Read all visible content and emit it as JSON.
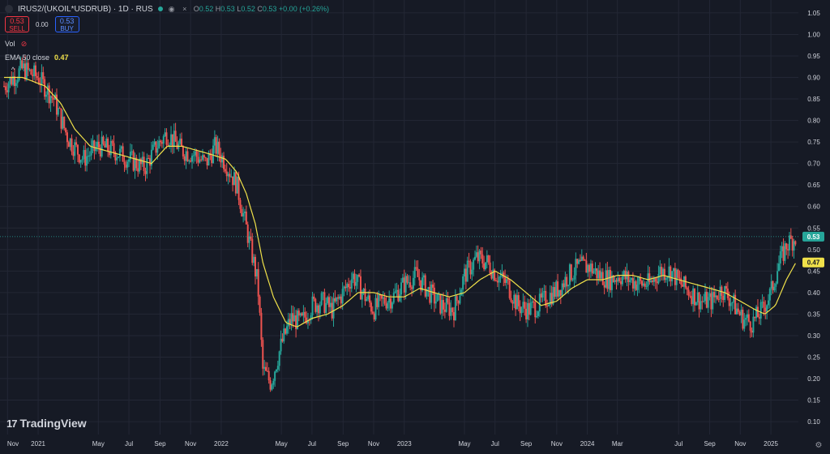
{
  "header": {
    "symbol": "IRUS2/(UKOIL*USDRUB) · 1D · RUS",
    "ohlc": [
      {
        "k": "O",
        "v": "0.52"
      },
      {
        "k": "H",
        "v": "0.53"
      },
      {
        "k": "L",
        "v": "0.52"
      },
      {
        "k": "C",
        "v": "0.53"
      },
      {
        "k": "",
        "v": "+0.00 (+0.26%)"
      }
    ],
    "sell_price": "0.53",
    "sell_label": "SELL",
    "buy_price": "0.53",
    "buy_label": "BUY",
    "spread": "0.00",
    "vol_label": "Vol",
    "ema_label": "EMA 50 close",
    "ema_value": "0.47",
    "logo_text": "TradingView",
    "logo_mark": "17"
  },
  "colors": {
    "background": "#161a25",
    "up": "#26a69a",
    "down": "#ef5350",
    "ema": "#f0e14a",
    "grid": "#232735",
    "text": "#d1d4dc"
  },
  "chart_data": {
    "type": "candlestick",
    "x_ticks": [
      "Nov",
      "2021",
      "May",
      "Jul",
      "Sep",
      "Nov",
      "2022",
      "May",
      "Jul",
      "Sep",
      "Nov",
      "2023",
      "May",
      "Jul",
      "Sep",
      "Nov",
      "2024",
      "Mar",
      "Jul",
      "Sep",
      "Nov",
      "2025"
    ],
    "y_ticks": [
      "1.05",
      "1.00",
      "0.95",
      "0.90",
      "0.85",
      "0.80",
      "0.75",
      "0.70",
      "0.65",
      "0.60",
      "0.55",
      "0.50",
      "0.45",
      "0.40",
      "0.35",
      "0.30",
      "0.25",
      "0.20",
      "0.15",
      "0.10"
    ],
    "ylim": [
      0.07,
      1.08
    ],
    "last_price": {
      "label": "0.53",
      "value": 0.53
    },
    "ema_price": {
      "label": "0.47",
      "value": 0.47
    },
    "close_series": {
      "dates": [
        "2020-10-25",
        "2020-12-01",
        "2021-01-01",
        "2021-02-01",
        "2021-03-01",
        "2021-04-01",
        "2021-05-01",
        "2021-06-01",
        "2021-07-01",
        "2021-08-01",
        "2021-08-25",
        "2021-09-15",
        "2021-10-15",
        "2021-11-10",
        "2021-12-01",
        "2021-12-20",
        "2022-01-10",
        "2022-02-01",
        "2022-02-20",
        "2022-03-05",
        "2022-03-15",
        "2022-03-25",
        "2022-04-10",
        "2022-05-01",
        "2022-05-20",
        "2022-06-10",
        "2022-07-01",
        "2022-07-20",
        "2022-08-10",
        "2022-09-01",
        "2022-09-20",
        "2022-10-10",
        "2022-11-01",
        "2022-11-20",
        "2022-12-10",
        "2023-01-01",
        "2023-01-25",
        "2023-02-20",
        "2023-03-15",
        "2023-04-10",
        "2023-05-01",
        "2023-05-25",
        "2023-06-15",
        "2023-07-05",
        "2023-07-25",
        "2023-08-15",
        "2023-09-05",
        "2023-09-25",
        "2023-10-15",
        "2023-11-05",
        "2023-11-25",
        "2023-12-15",
        "2024-01-05",
        "2024-01-25",
        "2024-02-15",
        "2024-03-05",
        "2024-03-25",
        "2024-04-15",
        "2024-05-05",
        "2024-05-25",
        "2024-06-15",
        "2024-07-05",
        "2024-07-25",
        "2024-08-15",
        "2024-09-05",
        "2024-09-25",
        "2024-10-15",
        "2024-11-05",
        "2024-11-25",
        "2024-12-15",
        "2025-01-01",
        "2025-01-15",
        "2025-02-01",
        "2025-02-20"
      ],
      "values": [
        0.88,
        0.92,
        0.9,
        0.85,
        0.76,
        0.71,
        0.74,
        0.73,
        0.71,
        0.69,
        0.74,
        0.77,
        0.73,
        0.72,
        0.7,
        0.74,
        0.7,
        0.65,
        0.55,
        0.48,
        0.42,
        0.22,
        0.19,
        0.28,
        0.34,
        0.33,
        0.37,
        0.38,
        0.36,
        0.4,
        0.44,
        0.4,
        0.36,
        0.38,
        0.39,
        0.42,
        0.44,
        0.4,
        0.37,
        0.36,
        0.44,
        0.48,
        0.47,
        0.44,
        0.42,
        0.37,
        0.36,
        0.37,
        0.39,
        0.41,
        0.44,
        0.46,
        0.46,
        0.44,
        0.43,
        0.44,
        0.43,
        0.42,
        0.42,
        0.45,
        0.45,
        0.42,
        0.4,
        0.38,
        0.38,
        0.41,
        0.38,
        0.34,
        0.33,
        0.36,
        0.4,
        0.46,
        0.51,
        0.53
      ]
    },
    "ema_series": {
      "dates": [
        "2020-10-25",
        "2020-12-01",
        "2021-01-15",
        "2021-02-15",
        "2021-03-15",
        "2021-04-15",
        "2021-05-15",
        "2021-06-15",
        "2021-07-15",
        "2021-08-15",
        "2021-09-15",
        "2021-10-15",
        "2021-11-15",
        "2021-12-15",
        "2022-01-10",
        "2022-02-01",
        "2022-02-20",
        "2022-03-10",
        "2022-03-25",
        "2022-04-15",
        "2022-05-10",
        "2022-06-01",
        "2022-07-01",
        "2022-08-01",
        "2022-09-01",
        "2022-10-01",
        "2022-11-01",
        "2022-12-01",
        "2023-01-01",
        "2023-02-01",
        "2023-03-01",
        "2023-04-01",
        "2023-05-01",
        "2023-06-01",
        "2023-07-01",
        "2023-08-01",
        "2023-09-01",
        "2023-10-01",
        "2023-11-01",
        "2023-12-01",
        "2024-01-01",
        "2024-02-01",
        "2024-03-01",
        "2024-04-01",
        "2024-05-01",
        "2024-06-01",
        "2024-07-01",
        "2024-08-01",
        "2024-09-01",
        "2024-10-01",
        "2024-11-01",
        "2024-12-01",
        "2024-12-20",
        "2025-01-10",
        "2025-02-01",
        "2025-02-20"
      ],
      "values": [
        0.9,
        0.9,
        0.88,
        0.84,
        0.78,
        0.74,
        0.73,
        0.72,
        0.71,
        0.7,
        0.74,
        0.74,
        0.73,
        0.72,
        0.71,
        0.68,
        0.63,
        0.56,
        0.47,
        0.39,
        0.33,
        0.32,
        0.34,
        0.35,
        0.37,
        0.4,
        0.4,
        0.39,
        0.39,
        0.41,
        0.4,
        0.39,
        0.4,
        0.43,
        0.45,
        0.43,
        0.4,
        0.37,
        0.38,
        0.41,
        0.43,
        0.43,
        0.44,
        0.44,
        0.43,
        0.44,
        0.43,
        0.42,
        0.41,
        0.4,
        0.38,
        0.36,
        0.35,
        0.37,
        0.43,
        0.47
      ]
    }
  }
}
